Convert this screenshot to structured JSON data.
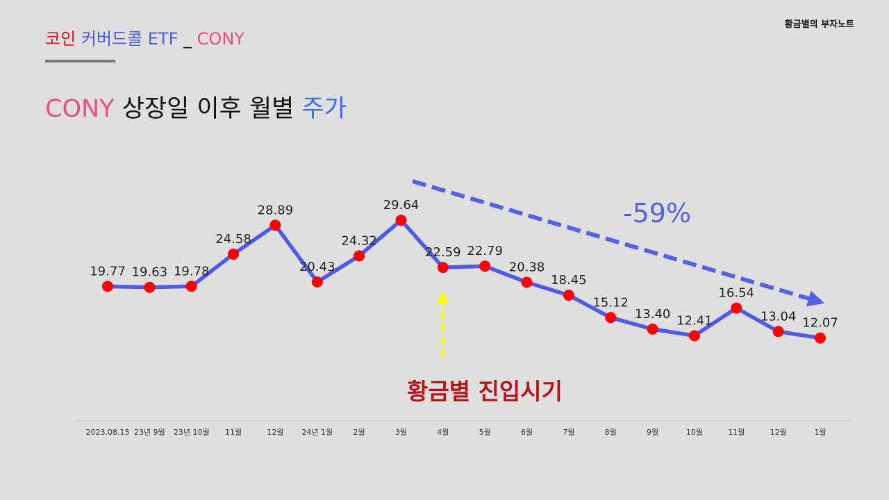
{
  "header": {
    "title_coin": "코인",
    "title_etf": "커버드콜 ETF",
    "title_sep": "_",
    "title_ticker": "CONY",
    "brand": "황금별의 부자노트"
  },
  "heading": {
    "ticker": "CONY",
    "middle": "상장일 이후 월별",
    "last": "주가"
  },
  "colors": {
    "line": "#4f5ae8",
    "point": "#ff0000",
    "trend_arrow": "#5562e6",
    "entry_arrow": "#ffff00",
    "entry_text": "#b8141c",
    "ticker_pink": "#ec4d7e",
    "coin_red": "#e0101e",
    "price_blue": "#3f6fe6"
  },
  "chart_data": {
    "type": "line",
    "title": "CONY 상장일 이후 월별 주가",
    "categories": [
      "2023.08.15",
      "23년 9월",
      "23년 10월",
      "11월",
      "12월",
      "24년 1월",
      "2월",
      "3월",
      "4월",
      "5월",
      "6월",
      "7월",
      "8월",
      "9월",
      "10월",
      "11월",
      "12월",
      "1월"
    ],
    "values": [
      19.77,
      19.63,
      19.78,
      24.58,
      28.89,
      20.43,
      24.32,
      29.64,
      22.59,
      22.79,
      20.38,
      18.45,
      15.12,
      13.4,
      12.41,
      16.54,
      13.04,
      12.07
    ],
    "labels": [
      "19.77",
      "19.63",
      "19.78",
      "24.58",
      "28.89",
      "20.43",
      "24.32",
      "29.64",
      "22.59",
      "22.79",
      "20.38",
      "18.45",
      "15.12",
      "13.40",
      "12.41",
      "16.54",
      "13.04",
      "12.07"
    ],
    "ylim": [
      0,
      35
    ],
    "xlabel": "",
    "ylabel": "",
    "grid": false,
    "legend": "none",
    "annotations": {
      "trend_label": "-59%",
      "entry_label": "황금별 진입시기",
      "entry_category": "4월"
    }
  }
}
